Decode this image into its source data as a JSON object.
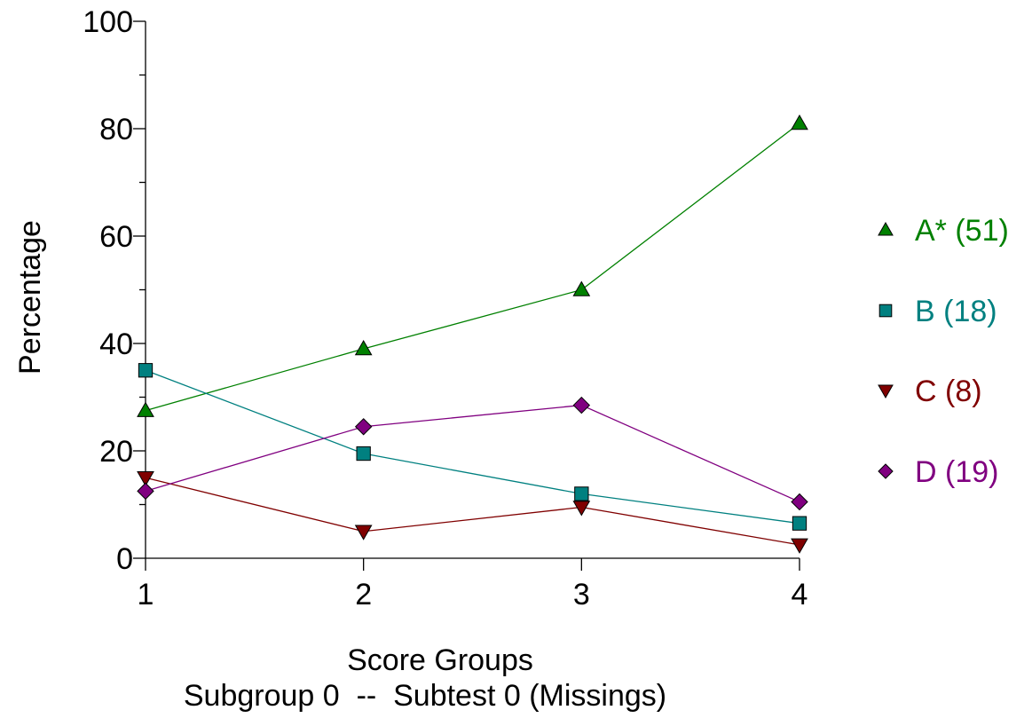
{
  "chart_data": {
    "type": "line",
    "xlabel": "Score Groups",
    "subtitle": "Subgroup 0  --  Subtest 0 (Missings)",
    "ylabel": "Percentage",
    "x": [
      1,
      2,
      3,
      4
    ],
    "xlim": [
      1,
      4
    ],
    "ylim": [
      0,
      100
    ],
    "yticks": [
      0,
      20,
      40,
      60,
      80,
      100
    ],
    "grid": false,
    "legend_position": "right",
    "series": [
      {
        "name": "A* (51)",
        "marker": "triangle-up",
        "color": "#008000",
        "values": [
          27.5,
          39,
          50,
          81
        ]
      },
      {
        "name": "B (18)",
        "marker": "square",
        "color": "#008080",
        "values": [
          35,
          19.5,
          12,
          6.5
        ]
      },
      {
        "name": "C (8)",
        "marker": "triangle-down",
        "color": "#800000",
        "values": [
          15,
          5,
          9.5,
          2.5
        ]
      },
      {
        "name": "D (19)",
        "marker": "diamond",
        "color": "#800080",
        "values": [
          12.5,
          24.5,
          28.5,
          10.5
        ]
      }
    ]
  }
}
